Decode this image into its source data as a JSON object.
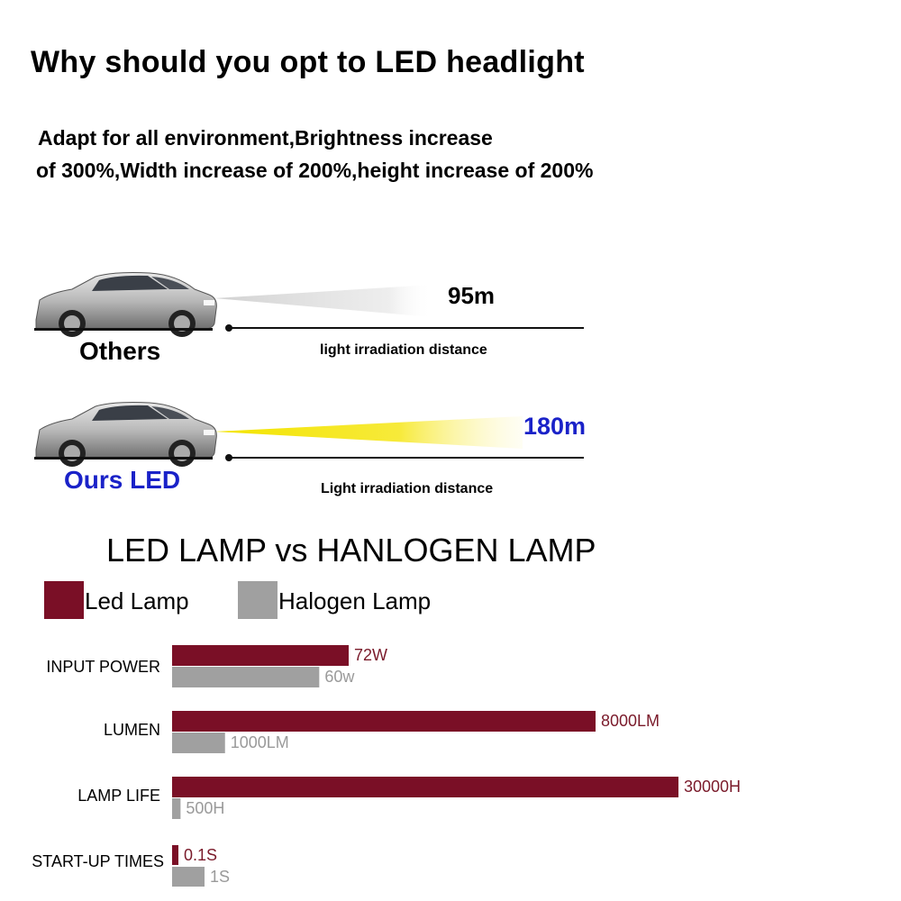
{
  "header": {
    "title": "Why should you opt to LED headlight",
    "subtitle_line1": "Adapt for all environment,Brightness increase",
    "subtitle_line2": "of 300%,Width increase of 200%,height increase of 200%"
  },
  "comparison": {
    "others": {
      "label": "Others",
      "distance": "95m",
      "caption": "light irradiation distance",
      "beam_color": "#d8d8d8"
    },
    "ours": {
      "label": "Ours LED",
      "distance": "180m",
      "caption": "Light irradiation distance",
      "label_color": "#1a22c8",
      "beam_color": "#f2e200"
    }
  },
  "chart_data": {
    "type": "bar",
    "title": "LED LAMP vs HANLOGEN LAMP",
    "legend_placement": "top-left",
    "categories": [
      "INPUT POWER",
      "LUMEN",
      "LAMP LIFE",
      "START-UP TIMES"
    ],
    "series": [
      {
        "name": "Led Lamp",
        "color": "#7a0f26",
        "label_color": "#7a1a2a",
        "labels": [
          "72W",
          "8000LM",
          "30000H",
          "0.1S"
        ],
        "values": [
          72,
          8000,
          30000,
          0.1
        ]
      },
      {
        "name": "Halogen Lamp",
        "color": "#a0a0a0",
        "label_color": "#9a9a9a",
        "labels": [
          "60w",
          "1000LM",
          "500H",
          "1S"
        ],
        "values": [
          60,
          1000,
          500,
          1
        ]
      }
    ],
    "grid": false
  }
}
